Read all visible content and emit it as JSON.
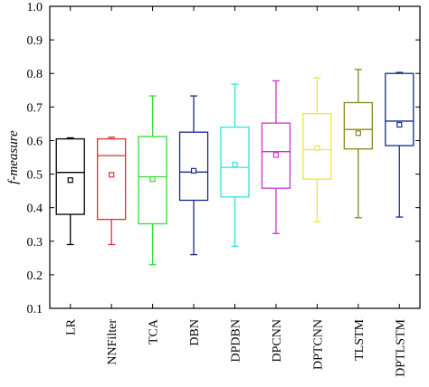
{
  "chart_data": {
    "type": "box",
    "title": "",
    "xlabel": "",
    "ylabel": "f-measure",
    "ylim": [
      0.1,
      1.0
    ],
    "yticks": [
      "0.1",
      "0.2",
      "0.3",
      "0.4",
      "0.5",
      "0.6",
      "0.7",
      "0.8",
      "0.9",
      "1.0"
    ],
    "grid": false,
    "legend": "none",
    "categories": [
      "LR",
      "NNFilter",
      "TCA",
      "DBN",
      "DPDBN",
      "DPCNN",
      "DPTCNN",
      "TLSTM",
      "DPTLSTM"
    ],
    "series": [
      {
        "category": "LR",
        "color": "#000000",
        "min": 0.29,
        "q1": 0.38,
        "median": 0.505,
        "q3": 0.605,
        "max": 0.608,
        "mean": 0.482
      },
      {
        "category": "NNFilter",
        "color": "#e03030",
        "min": 0.29,
        "q1": 0.365,
        "median": 0.555,
        "q3": 0.605,
        "max": 0.61,
        "mean": 0.498
      },
      {
        "category": "TCA",
        "color": "#33dd33",
        "min": 0.23,
        "q1": 0.352,
        "median": 0.492,
        "q3": 0.612,
        "max": 0.733,
        "mean": 0.485
      },
      {
        "category": "DBN",
        "color": "#1c2a8a",
        "min": 0.26,
        "q1": 0.422,
        "median": 0.506,
        "q3": 0.625,
        "max": 0.733,
        "mean": 0.51
      },
      {
        "category": "DPDBN",
        "color": "#33e0e0",
        "min": 0.285,
        "q1": 0.432,
        "median": 0.52,
        "q3": 0.64,
        "max": 0.768,
        "mean": 0.528
      },
      {
        "category": "DPCNN",
        "color": "#cc33cc",
        "min": 0.323,
        "q1": 0.458,
        "median": 0.567,
        "q3": 0.652,
        "max": 0.778,
        "mean": 0.557
      },
      {
        "category": "DPTCNN",
        "color": "#e8e840",
        "min": 0.358,
        "q1": 0.485,
        "median": 0.573,
        "q3": 0.68,
        "max": 0.787,
        "mean": 0.578
      },
      {
        "category": "TLSTM",
        "color": "#888822",
        "min": 0.37,
        "q1": 0.575,
        "median": 0.633,
        "q3": 0.713,
        "max": 0.812,
        "mean": 0.622
      },
      {
        "category": "DPTLSTM",
        "color": "#1c2a8a",
        "min": 0.372,
        "q1": 0.585,
        "median": 0.658,
        "q3": 0.8,
        "max": 0.803,
        "mean": 0.647
      }
    ]
  }
}
